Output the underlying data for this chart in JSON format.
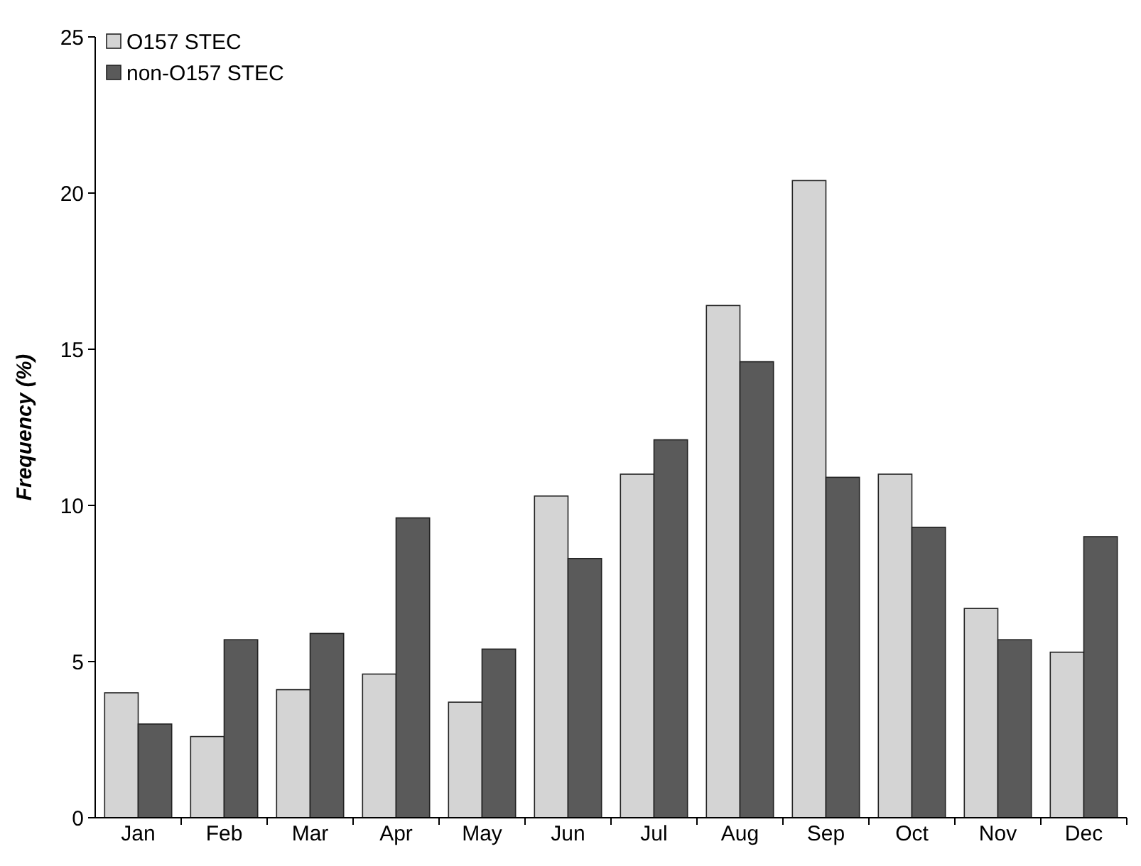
{
  "chart_data": {
    "type": "bar",
    "ylabel": "Frequency (%)",
    "categories": [
      "Jan",
      "Feb",
      "Mar",
      "Apr",
      "May",
      "Jun",
      "Jul",
      "Aug",
      "Sep",
      "Oct",
      "Nov",
      "Dec"
    ],
    "series": [
      {
        "name": "O157 STEC",
        "color": "#d4d4d4",
        "values": [
          4.0,
          2.6,
          4.1,
          4.6,
          3.7,
          10.3,
          11.0,
          16.4,
          20.4,
          11.0,
          6.7,
          5.3
        ]
      },
      {
        "name": "non-O157 STEC",
        "color": "#5a5a5a",
        "values": [
          3.0,
          5.7,
          5.9,
          9.6,
          5.4,
          8.3,
          12.1,
          14.6,
          10.9,
          9.3,
          5.7,
          9.0
        ]
      }
    ],
    "ylim": [
      0,
      25
    ],
    "yticks": [
      0,
      5,
      10,
      15,
      20,
      25
    ],
    "grid": false,
    "legend": "top left"
  }
}
